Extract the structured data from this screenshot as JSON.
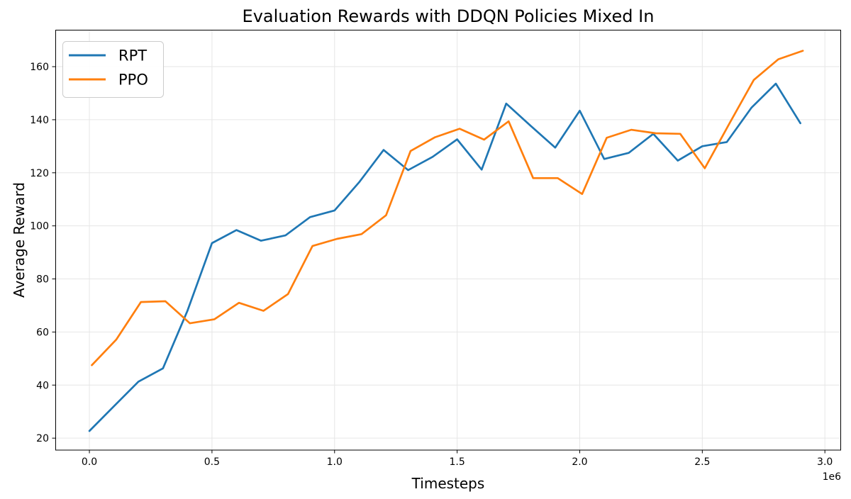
{
  "chart_data": {
    "type": "line",
    "title": "Evaluation Rewards with DDQN Policies Mixed In",
    "xlabel": "Timesteps",
    "ylabel": "Average Reward",
    "x_offset_label": "1e6",
    "grid": true,
    "legend_position": "upper left",
    "xlim": [
      -0.139,
      3.066
    ],
    "ylim": [
      15.5,
      173.9
    ],
    "x_ticks": [
      0.0,
      0.5,
      1.0,
      1.5,
      2.0,
      2.5,
      3.0
    ],
    "x_tick_labels": [
      "0.0",
      "0.5",
      "1.0",
      "1.5",
      "2.0",
      "2.5",
      "3.0"
    ],
    "y_ticks": [
      20,
      40,
      60,
      80,
      100,
      120,
      140,
      160
    ],
    "y_tick_labels": [
      "20",
      "40",
      "60",
      "80",
      "100",
      "120",
      "140",
      "160"
    ],
    "axis_color": "#000000",
    "grid_color": "#e6e6e6",
    "series": [
      {
        "name": "RPT",
        "color": "#1f77b4",
        "x": [
          0.0,
          0.1,
          0.2,
          0.3,
          0.4,
          0.5,
          0.6,
          0.7,
          0.8,
          0.9,
          1.0,
          1.1,
          1.2,
          1.3,
          1.4,
          1.5,
          1.6,
          1.7,
          1.8,
          1.9,
          2.0,
          2.1,
          2.2,
          2.3,
          2.4,
          2.5,
          2.6,
          2.7,
          2.8,
          2.9
        ],
        "y": [
          22.7,
          32.0,
          41.3,
          46.3,
          68.0,
          93.5,
          98.4,
          94.4,
          96.4,
          103.3,
          105.8,
          116.4,
          128.6,
          121.0,
          126.0,
          132.6,
          121.2,
          146.1,
          137.7,
          129.5,
          143.4,
          125.2,
          127.5,
          134.7,
          124.6,
          130.0,
          131.6,
          144.5,
          153.6,
          138.7
        ]
      },
      {
        "name": "PPO",
        "color": "#ff7f0e",
        "x": [
          0.01,
          0.11,
          0.21,
          0.31,
          0.41,
          0.51,
          0.61,
          0.71,
          0.81,
          0.91,
          1.01,
          1.11,
          1.21,
          1.31,
          1.41,
          1.51,
          1.61,
          1.71,
          1.81,
          1.91,
          2.01,
          2.11,
          2.21,
          2.31,
          2.41,
          2.51,
          2.61,
          2.71,
          2.81,
          2.91
        ],
        "y": [
          47.5,
          57.2,
          71.3,
          71.6,
          63.3,
          64.8,
          71.0,
          68.0,
          74.3,
          92.4,
          95.1,
          96.9,
          104.0,
          128.2,
          133.4,
          136.6,
          132.5,
          139.4,
          118.0,
          118.0,
          112.0,
          133.2,
          136.2,
          134.9,
          134.7,
          121.7,
          138.5,
          155.0,
          162.8,
          166.0
        ]
      }
    ]
  }
}
